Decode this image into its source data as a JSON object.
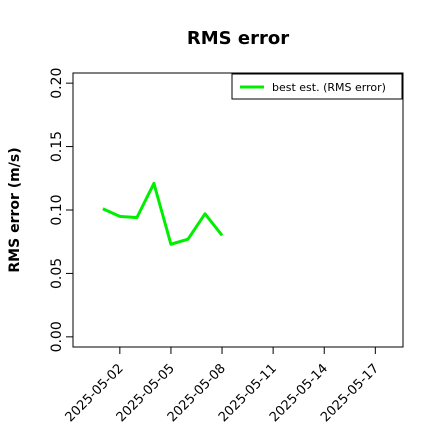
{
  "chart_data": {
    "type": "line",
    "title": "RMS error",
    "ylabel": "RMS error (m/s)",
    "x": [
      "2025-05-01",
      "2025-05-02",
      "2025-05-03",
      "2025-05-04",
      "2025-05-05",
      "2025-05-06",
      "2025-05-07",
      "2025-05-08"
    ],
    "series": [
      {
        "name": "best est. (RMS error)",
        "color": "#00ee00",
        "values": [
          0.101,
          0.095,
          0.094,
          0.121,
          0.073,
          0.077,
          0.097,
          0.08
        ]
      }
    ],
    "xlim": [
      "2025-04-29T06:00",
      "2025-05-18T15:00"
    ],
    "xticks": [
      "2025-05-02",
      "2025-05-05",
      "2025-05-08",
      "2025-05-11",
      "2025-05-14",
      "2025-05-17"
    ],
    "xtick_highlight": {
      "index": 2,
      "color": "#228b22"
    },
    "ylim": [
      -0.008,
      0.208
    ],
    "yticks": [
      {
        "value": 0,
        "label": "0.00"
      },
      {
        "value": 0.05,
        "label": "0.05"
      },
      {
        "value": 0.1,
        "label": "0.10"
      },
      {
        "value": 0.15,
        "label": "0.15"
      },
      {
        "value": 0.2,
        "label": "0.20"
      }
    ],
    "legend": "top-right",
    "grid": false
  }
}
